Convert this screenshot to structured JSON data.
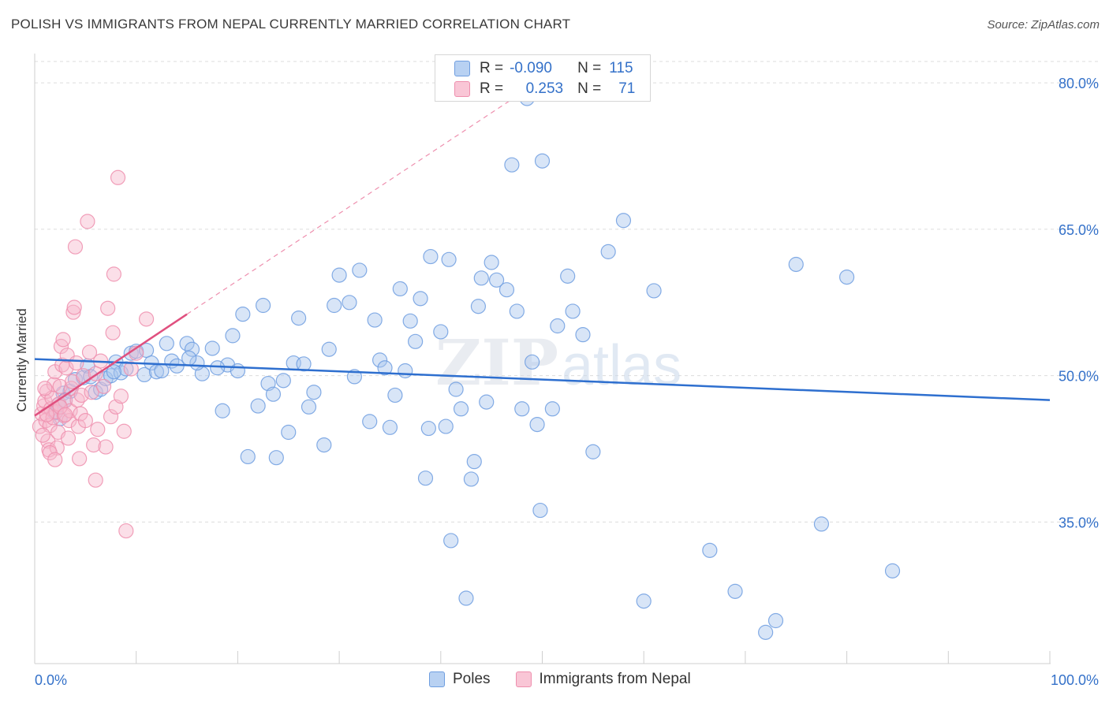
{
  "title": "POLISH VS IMMIGRANTS FROM NEPAL CURRENTLY MARRIED CORRELATION CHART",
  "source": "Source: ZipAtlas.com",
  "watermark": {
    "zip": "ZIP",
    "atlas": "atlas"
  },
  "legend": {
    "rows": [
      {
        "r_label": "R =",
        "r_value": "-0.090",
        "n_label": "N =",
        "n_value": "115"
      },
      {
        "r_label": "R =",
        "r_value": "0.253",
        "n_label": "N =",
        "n_value": "71"
      }
    ]
  },
  "colors": {
    "poles_fill": "#a8c6ee",
    "poles_stroke": "#6f9ee0",
    "poles_line": "#2e6fcf",
    "nepal_fill": "#f7b9cc",
    "nepal_stroke": "#ee8fae",
    "nepal_line": "#e0507f",
    "axis_text": "#3471c9",
    "grid": "#dcdcdc"
  },
  "chart_data": {
    "type": "scatter",
    "title": "POLISH VS IMMIGRANTS FROM NEPAL CURRENTLY MARRIED CORRELATION CHART",
    "xlabel": "",
    "ylabel": "Currently Married",
    "xlim": [
      0,
      100
    ],
    "ylim": [
      20.5,
      83
    ],
    "grid": true,
    "legend_position": "top-center",
    "x_tick_labels": [
      "0.0%",
      "100.0%"
    ],
    "y_ticks": [
      35,
      50,
      65,
      80
    ],
    "y_tick_labels": [
      "35.0%",
      "50.0%",
      "65.0%",
      "80.0%"
    ],
    "series": [
      {
        "name": "Poles",
        "r": -0.09,
        "n": 115,
        "trend": {
          "x": [
            0,
            100
          ],
          "y": [
            51.7,
            47.5
          ],
          "style": "solid"
        },
        "points": [
          [
            2.0,
            46.2
          ],
          [
            2.3,
            47.0
          ],
          [
            2.8,
            48.2
          ],
          [
            2.5,
            45.6
          ],
          [
            3.5,
            48.4
          ],
          [
            4.0,
            49.6
          ],
          [
            4.8,
            49.8
          ],
          [
            5.2,
            51.0
          ],
          [
            6.0,
            48.3
          ],
          [
            6.5,
            48.6
          ],
          [
            7.0,
            49.7
          ],
          [
            7.5,
            50.0
          ],
          [
            8.0,
            51.4
          ],
          [
            8.5,
            50.3
          ],
          [
            9.0,
            50.7
          ],
          [
            9.5,
            52.3
          ],
          [
            10.0,
            52.5
          ],
          [
            11.0,
            52.6
          ],
          [
            11.5,
            51.3
          ],
          [
            10.8,
            50.1
          ],
          [
            12.0,
            50.4
          ],
          [
            12.5,
            50.5
          ],
          [
            13.0,
            53.3
          ],
          [
            13.5,
            51.5
          ],
          [
            14.0,
            51.0
          ],
          [
            15.0,
            53.3
          ],
          [
            15.5,
            52.7
          ],
          [
            16.5,
            50.2
          ],
          [
            16.0,
            51.3
          ],
          [
            17.5,
            52.8
          ],
          [
            18.5,
            46.4
          ],
          [
            19.0,
            51.1
          ],
          [
            19.5,
            54.1
          ],
          [
            20.0,
            50.5
          ],
          [
            20.5,
            56.3
          ],
          [
            21.0,
            41.7
          ],
          [
            22.0,
            46.9
          ],
          [
            22.5,
            57.2
          ],
          [
            23.0,
            49.2
          ],
          [
            23.5,
            48.1
          ],
          [
            23.8,
            41.6
          ],
          [
            24.5,
            49.5
          ],
          [
            25.5,
            51.3
          ],
          [
            26.0,
            55.9
          ],
          [
            26.5,
            51.2
          ],
          [
            27.0,
            46.8
          ],
          [
            27.5,
            48.3
          ],
          [
            28.5,
            42.9
          ],
          [
            29.0,
            52.7
          ],
          [
            29.5,
            57.2
          ],
          [
            30.0,
            60.3
          ],
          [
            31.0,
            57.5
          ],
          [
            31.5,
            49.9
          ],
          [
            32.0,
            60.8
          ],
          [
            33.0,
            45.3
          ],
          [
            33.5,
            55.7
          ],
          [
            34.0,
            51.6
          ],
          [
            34.5,
            50.8
          ],
          [
            35.0,
            44.7
          ],
          [
            35.5,
            48.0
          ],
          [
            36.0,
            58.9
          ],
          [
            36.5,
            50.5
          ],
          [
            37.0,
            55.6
          ],
          [
            37.5,
            53.5
          ],
          [
            38.0,
            57.9
          ],
          [
            38.5,
            39.5
          ],
          [
            38.8,
            44.6
          ],
          [
            39.0,
            62.2
          ],
          [
            40.0,
            54.5
          ],
          [
            40.5,
            44.8
          ],
          [
            40.8,
            61.9
          ],
          [
            41.0,
            33.1
          ],
          [
            41.5,
            48.6
          ],
          [
            42.5,
            27.2
          ],
          [
            42.0,
            46.6
          ],
          [
            43.0,
            39.4
          ],
          [
            43.3,
            41.2
          ],
          [
            43.7,
            57.1
          ],
          [
            44.0,
            60.0
          ],
          [
            44.5,
            47.3
          ],
          [
            45.0,
            61.6
          ],
          [
            45.5,
            59.8
          ],
          [
            46.5,
            58.8
          ],
          [
            47.0,
            71.6
          ],
          [
            47.5,
            56.6
          ],
          [
            48.0,
            46.6
          ],
          [
            48.5,
            78.4
          ],
          [
            49.0,
            51.4
          ],
          [
            49.5,
            45.0
          ],
          [
            49.8,
            36.2
          ],
          [
            50.0,
            72.0
          ],
          [
            51.0,
            46.6
          ],
          [
            51.5,
            55.1
          ],
          [
            52.5,
            60.2
          ],
          [
            53.0,
            56.6
          ],
          [
            54.0,
            54.2
          ],
          [
            55.0,
            42.2
          ],
          [
            56.5,
            62.7
          ],
          [
            58.0,
            65.9
          ],
          [
            60.0,
            26.9
          ],
          [
            61.0,
            58.7
          ],
          [
            66.5,
            32.1
          ],
          [
            69.0,
            27.9
          ],
          [
            72.0,
            23.7
          ],
          [
            73.0,
            24.9
          ],
          [
            75.0,
            61.4
          ],
          [
            77.5,
            34.8
          ],
          [
            80.0,
            60.1
          ],
          [
            84.5,
            30.0
          ],
          [
            25.0,
            44.2
          ],
          [
            7.8,
            50.4
          ],
          [
            15.2,
            51.8
          ],
          [
            18.0,
            50.8
          ],
          [
            5.5,
            49.9
          ],
          [
            3.0,
            47.5
          ]
        ]
      },
      {
        "name": "Immigrants from Nepal",
        "r": 0.253,
        "n": 71,
        "trend": {
          "x": [
            0,
            15
          ],
          "y": [
            45.9,
            56.3
          ],
          "style": "solid",
          "extension": {
            "x": [
              15,
              48
            ],
            "y": [
              56.3,
              79.0
            ],
            "style": "dashed"
          }
        },
        "points": [
          [
            0.5,
            44.8
          ],
          [
            0.7,
            46.1
          ],
          [
            0.9,
            46.9
          ],
          [
            1.0,
            47.4
          ],
          [
            1.1,
            45.4
          ],
          [
            1.2,
            48.4
          ],
          [
            1.3,
            43.3
          ],
          [
            1.4,
            42.4
          ],
          [
            1.5,
            44.9
          ],
          [
            1.6,
            46.6
          ],
          [
            1.7,
            47.7
          ],
          [
            1.8,
            45.7
          ],
          [
            1.9,
            49.1
          ],
          [
            2.0,
            50.4
          ],
          [
            2.1,
            46.3
          ],
          [
            2.2,
            42.6
          ],
          [
            2.3,
            44.2
          ],
          [
            2.4,
            47.1
          ],
          [
            2.5,
            48.9
          ],
          [
            2.6,
            53.0
          ],
          [
            2.7,
            51.1
          ],
          [
            2.8,
            53.7
          ],
          [
            2.9,
            45.9
          ],
          [
            3.0,
            47.4
          ],
          [
            3.1,
            50.8
          ],
          [
            3.2,
            52.1
          ],
          [
            3.3,
            43.6
          ],
          [
            3.4,
            45.4
          ],
          [
            3.5,
            46.4
          ],
          [
            3.6,
            48.7
          ],
          [
            3.7,
            49.4
          ],
          [
            3.8,
            56.5
          ],
          [
            3.9,
            57.0
          ],
          [
            4.0,
            63.2
          ],
          [
            4.1,
            51.3
          ],
          [
            4.2,
            47.5
          ],
          [
            4.3,
            44.8
          ],
          [
            4.4,
            41.5
          ],
          [
            4.5,
            46.1
          ],
          [
            4.6,
            48.0
          ],
          [
            4.8,
            50.0
          ],
          [
            5.0,
            45.4
          ],
          [
            5.2,
            65.8
          ],
          [
            5.4,
            52.4
          ],
          [
            5.6,
            48.3
          ],
          [
            5.8,
            42.9
          ],
          [
            6.0,
            39.3
          ],
          [
            6.2,
            44.5
          ],
          [
            6.5,
            51.5
          ],
          [
            6.8,
            48.9
          ],
          [
            7.0,
            42.7
          ],
          [
            7.2,
            56.9
          ],
          [
            7.5,
            45.8
          ],
          [
            7.8,
            60.4
          ],
          [
            7.7,
            54.4
          ],
          [
            8.0,
            46.8
          ],
          [
            8.2,
            70.3
          ],
          [
            8.5,
            47.9
          ],
          [
            8.8,
            44.3
          ],
          [
            9.0,
            34.1
          ],
          [
            9.5,
            50.7
          ],
          [
            10.0,
            52.3
          ],
          [
            11.0,
            55.8
          ],
          [
            1.5,
            42.1
          ],
          [
            2.0,
            41.4
          ],
          [
            2.5,
            46.8
          ],
          [
            3.0,
            46.0
          ],
          [
            1.0,
            48.7
          ],
          [
            6.0,
            50.2
          ],
          [
            0.8,
            43.9
          ],
          [
            1.2,
            46.0
          ]
        ]
      }
    ]
  }
}
